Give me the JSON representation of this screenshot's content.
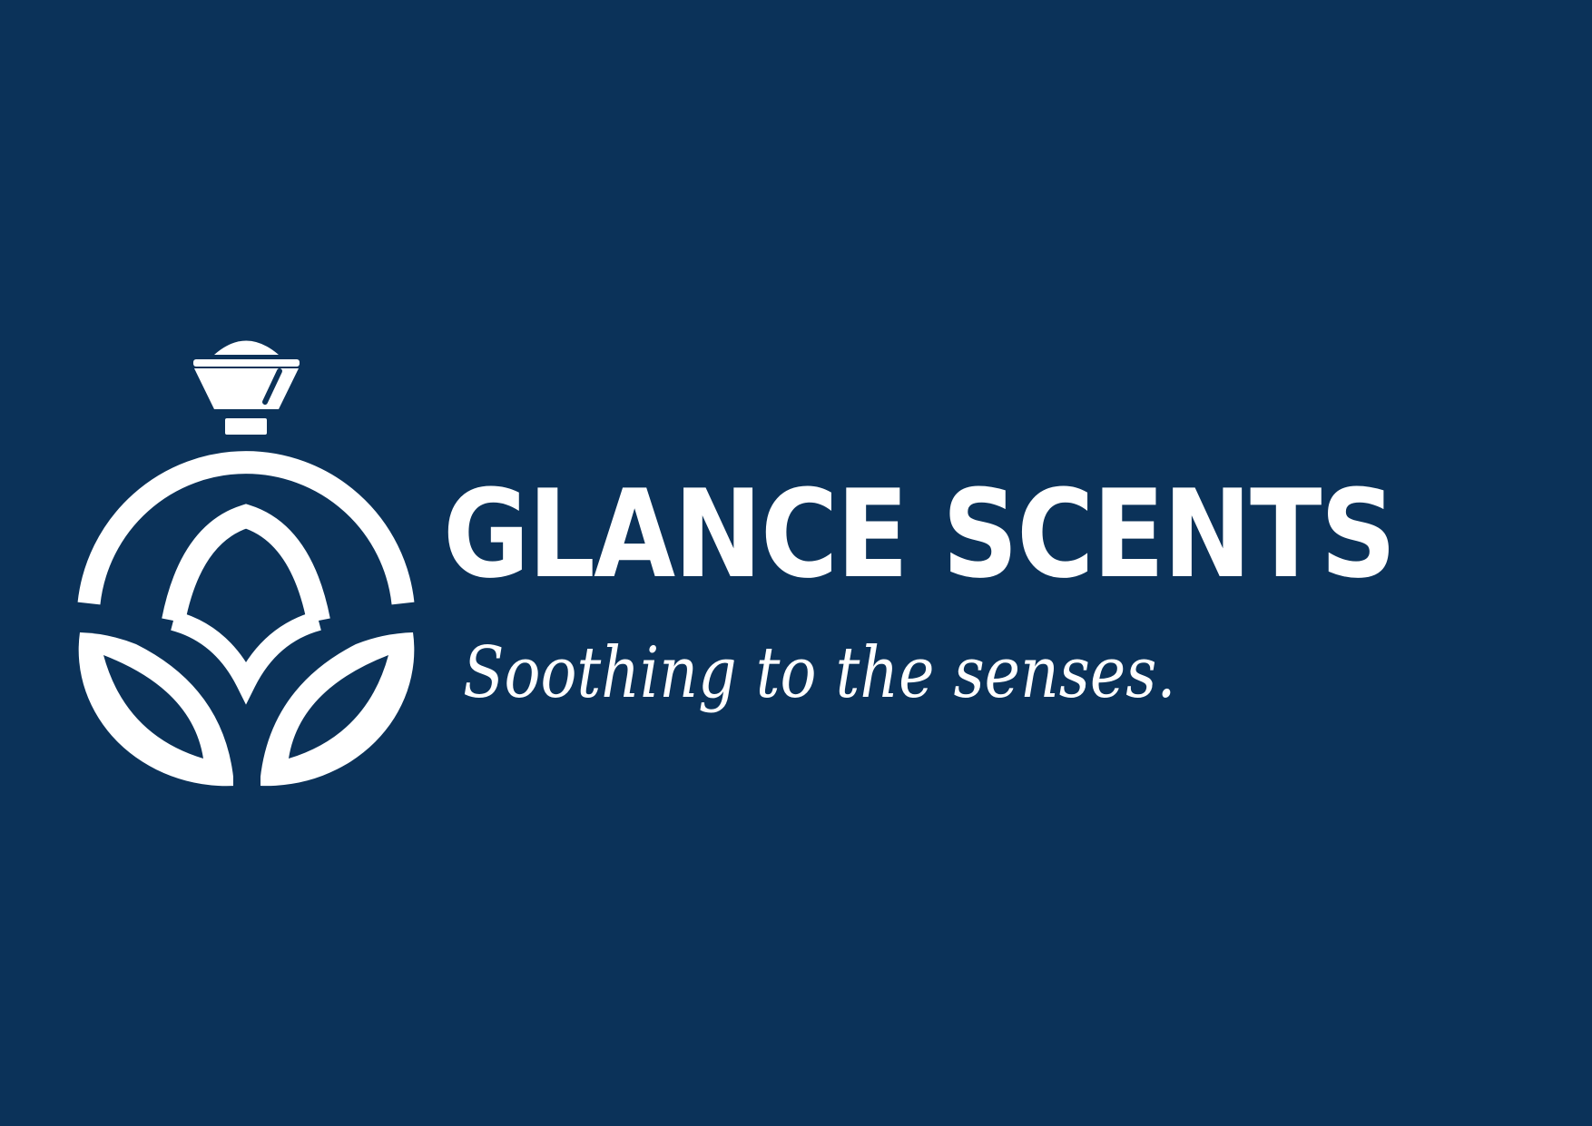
{
  "brand": {
    "name": "GLANCE SCENTS",
    "tagline": "Soothing to the senses."
  },
  "logo": {
    "icon": "perfume-bottle-with-leaves-icon"
  },
  "colors": {
    "background": "#0b3259",
    "foreground": "#ffffff"
  }
}
